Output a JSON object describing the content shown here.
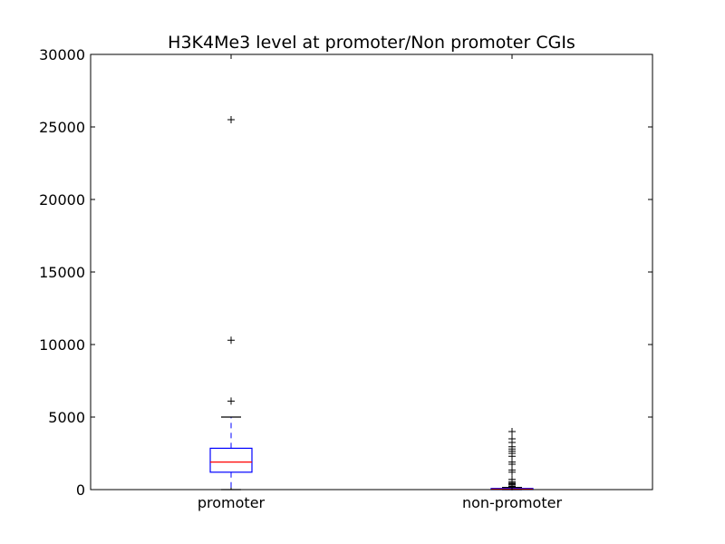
{
  "chart_data": {
    "type": "boxplot",
    "title": "H3K4Me3 level at promoter/Non promoter CGIs",
    "xlabel": "",
    "ylabel": "",
    "ylim": [
      0,
      30000
    ],
    "yticks": [
      0,
      5000,
      10000,
      15000,
      20000,
      25000,
      30000
    ],
    "grid": false,
    "colors": {
      "box": "#0000ff",
      "median": "#ff0000",
      "whisker": "#0000ff",
      "cap": "#000000",
      "flier": "#000000"
    },
    "categories": [
      "promoter",
      "non-promoter"
    ],
    "boxes": [
      {
        "label": "promoter",
        "whisker_low": 0,
        "q1": 1200,
        "median": 1900,
        "q3": 2850,
        "whisker_high": 5000,
        "outliers": [
          6100,
          10300,
          25500
        ]
      },
      {
        "label": "non-promoter",
        "whisker_low": 0,
        "q1": 0,
        "median": 30,
        "q3": 80,
        "whisker_high": 150,
        "outliers": [
          200,
          250,
          350,
          400,
          450,
          550,
          700,
          1200,
          1350,
          1750,
          1900,
          2300,
          2500,
          2650,
          2800,
          2950,
          3250,
          3500,
          4000
        ]
      }
    ]
  }
}
